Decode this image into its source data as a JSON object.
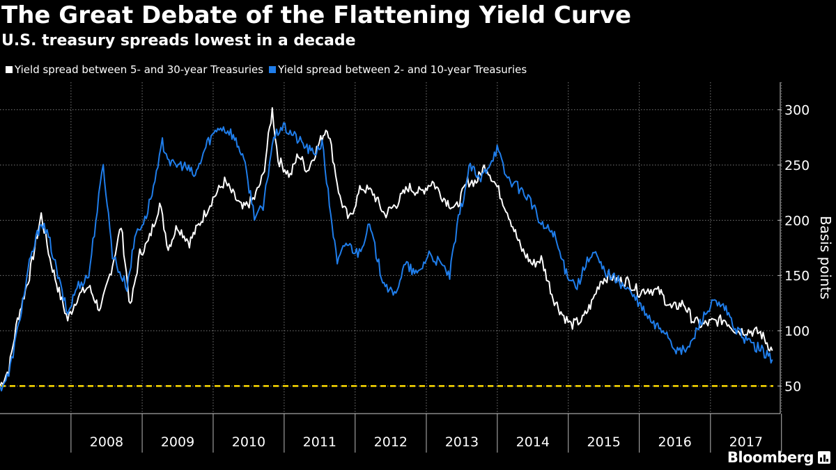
{
  "chart_data": {
    "type": "line",
    "title": "The Great Debate of the Flattening Yield Curve",
    "subtitle": "U.S. treasury spreads lowest in a decade",
    "ylabel": "Basis points",
    "xlabel": "",
    "ylim": [
      25,
      325
    ],
    "xlim": [
      "2007-01-01",
      "2017-11-20"
    ],
    "y_ticks": [
      50,
      100,
      150,
      200,
      250,
      300
    ],
    "x_tick_labels": [
      "2008",
      "2009",
      "2010",
      "2011",
      "2012",
      "2013",
      "2014",
      "2015",
      "2016",
      "2017"
    ],
    "grid": true,
    "legend_position": "top-left",
    "reference_line": {
      "value": 50,
      "color": "#ffdd00",
      "style": "dashed"
    },
    "series": [
      {
        "name": "Yield spread between 5- and 30-year Treasuries",
        "color": "#ffffff",
        "points": [
          [
            "2007-01-01",
            50
          ],
          [
            "2007-02-15",
            65
          ],
          [
            "2007-04-01",
            110
          ],
          [
            "2007-06-01",
            150
          ],
          [
            "2007-08-01",
            205
          ],
          [
            "2007-09-15",
            165
          ],
          [
            "2007-11-01",
            135
          ],
          [
            "2007-12-15",
            110
          ],
          [
            "2008-02-01",
            130
          ],
          [
            "2008-04-01",
            140
          ],
          [
            "2008-06-01",
            118
          ],
          [
            "2008-08-01",
            160
          ],
          [
            "2008-09-15",
            195
          ],
          [
            "2008-11-01",
            120
          ],
          [
            "2008-12-20",
            170
          ],
          [
            "2009-02-01",
            180
          ],
          [
            "2009-04-01",
            215
          ],
          [
            "2009-05-15",
            175
          ],
          [
            "2009-07-01",
            195
          ],
          [
            "2009-09-01",
            180
          ],
          [
            "2009-11-01",
            200
          ],
          [
            "2009-12-31",
            220
          ],
          [
            "2010-03-01",
            235
          ],
          [
            "2010-06-01",
            210
          ],
          [
            "2010-08-01",
            220
          ],
          [
            "2010-09-15",
            240
          ],
          [
            "2010-11-01",
            300
          ],
          [
            "2010-12-01",
            255
          ],
          [
            "2011-02-01",
            240
          ],
          [
            "2011-03-15",
            260
          ],
          [
            "2011-05-01",
            245
          ],
          [
            "2011-07-01",
            270
          ],
          [
            "2011-08-10",
            285
          ],
          [
            "2011-09-01",
            265
          ],
          [
            "2011-10-15",
            220
          ],
          [
            "2011-12-01",
            200
          ],
          [
            "2012-02-01",
            230
          ],
          [
            "2012-04-01",
            225
          ],
          [
            "2012-06-01",
            205
          ],
          [
            "2012-08-01",
            215
          ],
          [
            "2012-10-01",
            230
          ],
          [
            "2012-12-01",
            225
          ],
          [
            "2013-02-01",
            235
          ],
          [
            "2013-04-01",
            220
          ],
          [
            "2013-06-01",
            210
          ],
          [
            "2013-08-01",
            235
          ],
          [
            "2013-09-15",
            235
          ],
          [
            "2013-11-01",
            250
          ],
          [
            "2013-12-31",
            230
          ],
          [
            "2014-03-01",
            205
          ],
          [
            "2014-05-01",
            175
          ],
          [
            "2014-07-01",
            160
          ],
          [
            "2014-08-15",
            165
          ],
          [
            "2014-10-15",
            130
          ],
          [
            "2014-12-01",
            115
          ],
          [
            "2015-01-15",
            105
          ],
          [
            "2015-03-15",
            110
          ],
          [
            "2015-05-01",
            125
          ],
          [
            "2015-06-15",
            145
          ],
          [
            "2015-08-01",
            150
          ],
          [
            "2015-09-15",
            145
          ],
          [
            "2015-11-01",
            145
          ],
          [
            "2015-12-31",
            135
          ],
          [
            "2016-02-15",
            138
          ],
          [
            "2016-04-15",
            135
          ],
          [
            "2016-06-15",
            120
          ],
          [
            "2016-08-15",
            125
          ],
          [
            "2016-10-01",
            110
          ],
          [
            "2016-11-15",
            105
          ],
          [
            "2017-01-15",
            108
          ],
          [
            "2017-03-15",
            110
          ],
          [
            "2017-05-15",
            100
          ],
          [
            "2017-07-15",
            100
          ],
          [
            "2017-09-15",
            98
          ],
          [
            "2017-11-15",
            82
          ]
        ]
      },
      {
        "name": "Yield spread between 2- and 10-year Treasuries",
        "color": "#1f7dea",
        "points": [
          [
            "2007-01-01",
            48
          ],
          [
            "2007-02-15",
            60
          ],
          [
            "2007-04-01",
            100
          ],
          [
            "2007-06-01",
            160
          ],
          [
            "2007-08-01",
            200
          ],
          [
            "2007-09-15",
            180
          ],
          [
            "2007-11-01",
            145
          ],
          [
            "2007-12-15",
            115
          ],
          [
            "2008-02-01",
            140
          ],
          [
            "2008-04-01",
            150
          ],
          [
            "2008-05-15",
            210
          ],
          [
            "2008-06-15",
            250
          ],
          [
            "2008-08-01",
            170
          ],
          [
            "2008-09-15",
            150
          ],
          [
            "2008-10-15",
            140
          ],
          [
            "2008-12-01",
            190
          ],
          [
            "2009-01-15",
            200
          ],
          [
            "2009-03-15",
            240
          ],
          [
            "2009-04-15",
            270
          ],
          [
            "2009-06-01",
            250
          ],
          [
            "2009-08-01",
            250
          ],
          [
            "2009-10-01",
            240
          ],
          [
            "2009-12-01",
            270
          ],
          [
            "2010-02-01",
            285
          ],
          [
            "2010-04-01",
            280
          ],
          [
            "2010-06-01",
            260
          ],
          [
            "2010-08-01",
            205
          ],
          [
            "2010-09-15",
            210
          ],
          [
            "2010-11-01",
            270
          ],
          [
            "2010-12-15",
            285
          ],
          [
            "2011-02-01",
            280
          ],
          [
            "2011-04-01",
            270
          ],
          [
            "2011-06-01",
            260
          ],
          [
            "2011-07-15",
            270
          ],
          [
            "2011-08-15",
            225
          ],
          [
            "2011-10-01",
            160
          ],
          [
            "2011-11-15",
            180
          ],
          [
            "2012-01-15",
            170
          ],
          [
            "2012-03-15",
            195
          ],
          [
            "2012-05-15",
            150
          ],
          [
            "2012-07-15",
            130
          ],
          [
            "2012-09-15",
            160
          ],
          [
            "2012-11-15",
            150
          ],
          [
            "2013-01-15",
            170
          ],
          [
            "2013-03-15",
            160
          ],
          [
            "2013-05-01",
            150
          ],
          [
            "2013-06-15",
            200
          ],
          [
            "2013-08-15",
            250
          ],
          [
            "2013-10-01",
            235
          ],
          [
            "2013-12-31",
            265
          ],
          [
            "2014-02-15",
            240
          ],
          [
            "2014-04-15",
            230
          ],
          [
            "2014-06-15",
            220
          ],
          [
            "2014-08-15",
            195
          ],
          [
            "2014-10-15",
            190
          ],
          [
            "2014-12-15",
            155
          ],
          [
            "2015-02-15",
            140
          ],
          [
            "2015-04-01",
            160
          ],
          [
            "2015-05-15",
            170
          ],
          [
            "2015-07-01",
            155
          ],
          [
            "2015-09-15",
            145
          ],
          [
            "2015-11-15",
            135
          ],
          [
            "2016-01-15",
            120
          ],
          [
            "2016-03-15",
            105
          ],
          [
            "2016-05-15",
            100
          ],
          [
            "2016-07-15",
            80
          ],
          [
            "2016-09-15",
            85
          ],
          [
            "2016-11-15",
            110
          ],
          [
            "2017-01-15",
            125
          ],
          [
            "2017-03-15",
            120
          ],
          [
            "2017-05-15",
            100
          ],
          [
            "2017-07-15",
            90
          ],
          [
            "2017-09-15",
            83
          ],
          [
            "2017-11-15",
            74
          ]
        ]
      }
    ]
  },
  "branding": {
    "logo_text": "Bloomberg"
  }
}
